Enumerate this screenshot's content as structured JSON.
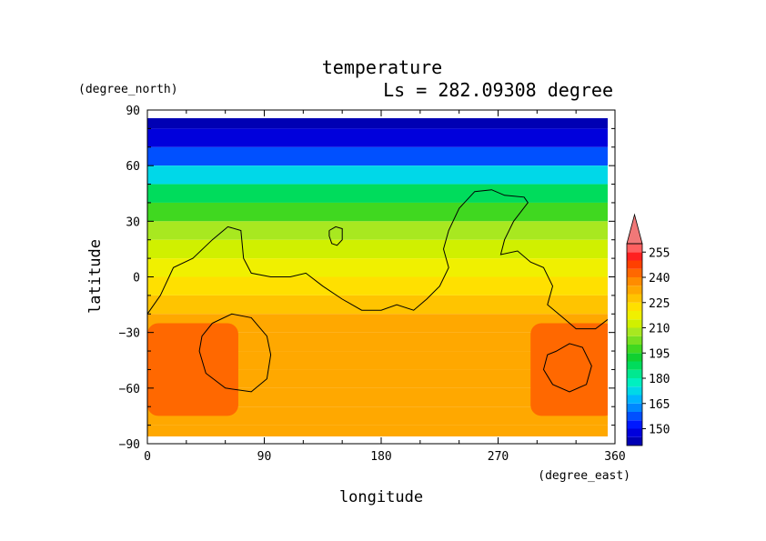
{
  "chart_data": {
    "type": "heatmap",
    "title": "temperature",
    "subtitle": "Ls = 282.09308 degree",
    "xlabel": "longitude",
    "ylabel": "latitude",
    "xunit": "(degree_east)",
    "yunit": "(degree_north)",
    "xlim": [
      0,
      360
    ],
    "ylim": [
      -90,
      90
    ],
    "xticks": [
      0,
      90,
      180,
      270,
      360
    ],
    "xtick_labels": [
      "0",
      "90",
      "180",
      "270",
      "360"
    ],
    "yticks": [
      90,
      60,
      30,
      0,
      -30,
      -60,
      -90
    ],
    "ytick_labels": [
      "90",
      "60",
      "30",
      "0",
      "−30",
      "−60",
      "−90"
    ],
    "colorbar": {
      "levels": [
        140,
        145,
        150,
        155,
        160,
        165,
        170,
        175,
        180,
        185,
        190,
        195,
        200,
        205,
        210,
        215,
        220,
        225,
        230,
        235,
        240,
        245,
        250,
        255,
        260
      ],
      "colors": [
        "#0000b4",
        "#0000dc",
        "#0018ff",
        "#0050ff",
        "#0088ff",
        "#00b4ff",
        "#00d8e8",
        "#00f0c0",
        "#00e890",
        "#00dc5c",
        "#10d030",
        "#40d820",
        "#78e020",
        "#a8e820",
        "#d0f000",
        "#f0f000",
        "#ffe000",
        "#ffc400",
        "#ffa800",
        "#ff8c00",
        "#ff6800",
        "#ff4000",
        "#ff2020",
        "#ff6060"
      ],
      "overflow_color": "#f07878",
      "labels": [
        "255",
        "240",
        "225",
        "210",
        "195",
        "180",
        "165",
        "150"
      ],
      "label_values": [
        255,
        240,
        225,
        210,
        195,
        180,
        165,
        150
      ]
    },
    "latitude_profile": [
      {
        "lat": 85,
        "t": 141
      },
      {
        "lat": 75,
        "t": 145
      },
      {
        "lat": 65,
        "t": 158
      },
      {
        "lat": 55,
        "t": 172
      },
      {
        "lat": 45,
        "t": 186
      },
      {
        "lat": 35,
        "t": 198
      },
      {
        "lat": 25,
        "t": 208
      },
      {
        "lat": 15,
        "t": 214
      },
      {
        "lat": 5,
        "t": 219
      },
      {
        "lat": -5,
        "t": 222
      },
      {
        "lat": -15,
        "t": 226
      },
      {
        "lat": -25,
        "t": 230
      },
      {
        "lat": -35,
        "t": 232
      },
      {
        "lat": -45,
        "t": 233
      },
      {
        "lat": -55,
        "t": 233
      },
      {
        "lat": -65,
        "t": 232
      },
      {
        "lat": -75,
        "t": 231
      },
      {
        "lat": -85,
        "t": 230
      }
    ],
    "warm_regions": [
      {
        "lon": [
          0,
          70
        ],
        "lat": [
          -75,
          -25
        ],
        "t": 242
      },
      {
        "lon": [
          295,
          360
        ],
        "lat": [
          -75,
          -25
        ],
        "t": 241
      }
    ],
    "contour_lines": [
      {
        "name": "continent-outline",
        "points": [
          [
            0,
            -20
          ],
          [
            10,
            -10
          ],
          [
            20,
            5
          ],
          [
            35,
            10
          ],
          [
            50,
            20
          ],
          [
            62,
            27
          ],
          [
            72,
            25
          ],
          [
            74,
            10
          ],
          [
            80,
            2
          ],
          [
            95,
            0
          ],
          [
            110,
            0
          ],
          [
            122,
            2
          ],
          [
            135,
            -5
          ],
          [
            150,
            -12
          ],
          [
            165,
            -18
          ],
          [
            180,
            -18
          ],
          [
            192,
            -15
          ],
          [
            205,
            -18
          ],
          [
            215,
            -12
          ],
          [
            225,
            -5
          ],
          [
            232,
            5
          ],
          [
            228,
            15
          ],
          [
            232,
            25
          ],
          [
            240,
            37
          ],
          [
            252,
            46
          ],
          [
            265,
            47
          ],
          [
            275,
            44
          ],
          [
            290,
            43
          ],
          [
            293,
            40
          ],
          [
            282,
            30
          ],
          [
            275,
            20
          ],
          [
            272,
            12
          ],
          [
            285,
            14
          ],
          [
            295,
            8
          ],
          [
            305,
            5
          ],
          [
            312,
            -5
          ],
          [
            308,
            -15
          ],
          [
            320,
            -22
          ],
          [
            330,
            -28
          ],
          [
            345,
            -28
          ],
          [
            360,
            -20
          ]
        ]
      },
      {
        "name": "crater-south-west",
        "points": [
          [
            50,
            -25
          ],
          [
            65,
            -20
          ],
          [
            80,
            -22
          ],
          [
            92,
            -32
          ],
          [
            95,
            -42
          ],
          [
            92,
            -55
          ],
          [
            80,
            -62
          ],
          [
            60,
            -60
          ],
          [
            45,
            -52
          ],
          [
            40,
            -40
          ],
          [
            42,
            -32
          ],
          [
            50,
            -25
          ]
        ]
      },
      {
        "name": "crater-south-east",
        "points": [
          [
            315,
            -40
          ],
          [
            325,
            -36
          ],
          [
            335,
            -38
          ],
          [
            342,
            -48
          ],
          [
            338,
            -58
          ],
          [
            325,
            -62
          ],
          [
            312,
            -58
          ],
          [
            305,
            -50
          ],
          [
            308,
            -42
          ],
          [
            315,
            -40
          ]
        ]
      },
      {
        "name": "small-island",
        "points": [
          [
            140,
            25
          ],
          [
            145,
            27
          ],
          [
            150,
            26
          ],
          [
            150,
            20
          ],
          [
            146,
            17
          ],
          [
            142,
            18
          ],
          [
            140,
            22
          ],
          [
            140,
            25
          ]
        ]
      }
    ]
  }
}
